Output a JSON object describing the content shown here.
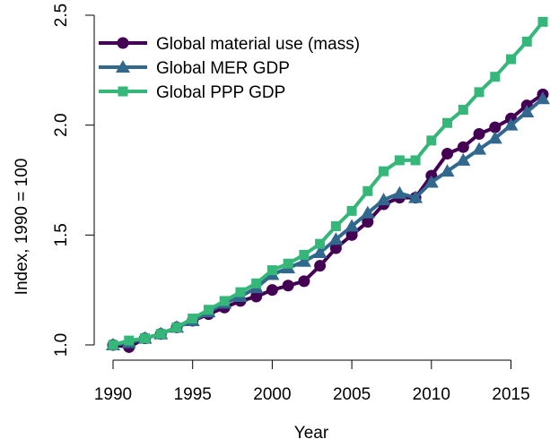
{
  "chart_data": {
    "type": "line",
    "title": "",
    "xlabel": "Year",
    "ylabel": "Index, 1990 = 100",
    "xlim": [
      1990,
      2017
    ],
    "ylim": [
      1.0,
      2.5
    ],
    "x_ticks": [
      1990,
      1995,
      2000,
      2005,
      2010,
      2015
    ],
    "y_ticks": [
      1.0,
      1.5,
      2.0,
      2.5
    ],
    "y_tick_labels": [
      "1.0",
      "1.5",
      "2.0",
      "2.5"
    ],
    "grid": false,
    "legend_position": "top-left",
    "x": [
      1990,
      1991,
      1992,
      1993,
      1994,
      1995,
      1996,
      1997,
      1998,
      1999,
      2000,
      2001,
      2002,
      2003,
      2004,
      2005,
      2006,
      2007,
      2008,
      2009,
      2010,
      2011,
      2012,
      2013,
      2014,
      2015,
      2016,
      2017
    ],
    "series": [
      {
        "name": "Global material use (mass)",
        "color": "#440154",
        "marker": "circle",
        "values": [
          1.0,
          0.99,
          1.03,
          1.05,
          1.08,
          1.11,
          1.14,
          1.17,
          1.2,
          1.22,
          1.25,
          1.27,
          1.29,
          1.36,
          1.44,
          1.5,
          1.56,
          1.64,
          1.67,
          1.67,
          1.77,
          1.87,
          1.9,
          1.96,
          1.99,
          2.03,
          2.09,
          2.14
        ]
      },
      {
        "name": "Global MER GDP",
        "color": "#31688e",
        "marker": "triangle",
        "values": [
          1.0,
          1.01,
          1.03,
          1.05,
          1.08,
          1.11,
          1.15,
          1.19,
          1.22,
          1.26,
          1.32,
          1.35,
          1.38,
          1.42,
          1.48,
          1.54,
          1.6,
          1.66,
          1.69,
          1.67,
          1.74,
          1.79,
          1.84,
          1.89,
          1.94,
          2.0,
          2.06,
          2.12
        ]
      },
      {
        "name": "Global PPP GDP",
        "color": "#35b779",
        "marker": "square",
        "values": [
          1.0,
          1.02,
          1.03,
          1.05,
          1.08,
          1.12,
          1.16,
          1.2,
          1.24,
          1.28,
          1.34,
          1.37,
          1.41,
          1.46,
          1.54,
          1.61,
          1.7,
          1.79,
          1.84,
          1.84,
          1.93,
          2.01,
          2.07,
          2.15,
          2.22,
          2.3,
          2.38,
          2.47
        ]
      }
    ]
  }
}
